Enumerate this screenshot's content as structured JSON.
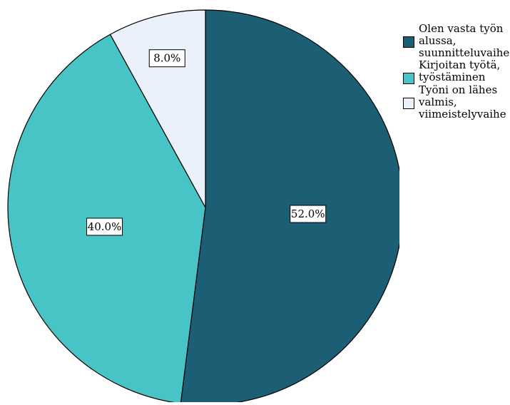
{
  "chart_data": {
    "type": "pie",
    "title": "",
    "slices": [
      {
        "label": "Olen vasta työn alussa, suunnitteluvaihe",
        "value": 52.0,
        "display": "52.0%",
        "color": "#1c5f75"
      },
      {
        "label": "Kirjoitan työtä, työstäminen",
        "value": 40.0,
        "display": "40.0%",
        "color": "#48c3c6"
      },
      {
        "label": "Työni on lähes valmis, viimeistelyvaihe",
        "value": 8.0,
        "display": "8.0%",
        "color": "#eaf1fb"
      }
    ],
    "legend": {
      "placement": "top-right",
      "entries": [
        {
          "label": "Olen vasta työn\nalussa,\nsuunnitteluvaihe",
          "color": "#1c5f75"
        },
        {
          "label": "Kirjoitan työtä,\ntyöstäminen",
          "color": "#48c3c6"
        },
        {
          "label": "Työni on lähes\nvalmis,\nviimeistelyvaihe",
          "color": "#eaf1fb"
        }
      ]
    },
    "start_angle": "12 o'clock",
    "direction": "clockwise"
  }
}
